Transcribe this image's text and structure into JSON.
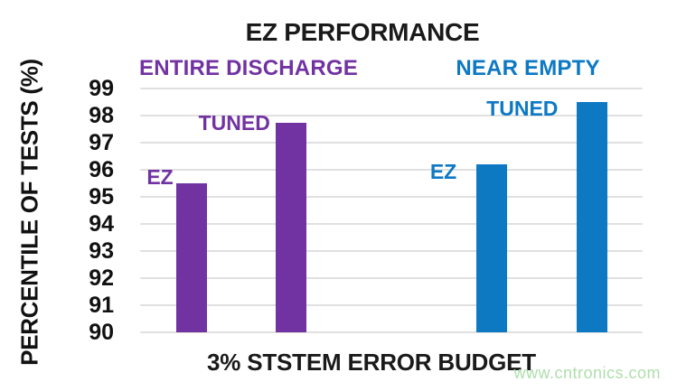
{
  "watermark": "www.cntronics.com",
  "chart_data": {
    "type": "bar",
    "title": "EZ PERFORMANCE",
    "ylabel": "PERCENTILE OF TESTS (%)",
    "xlabel": "3% STSTEM ERROR BUDGET",
    "ylim": [
      90,
      99
    ],
    "yticks": [
      99,
      98,
      97,
      96,
      95,
      94,
      93,
      92,
      91,
      90
    ],
    "grid": true,
    "legend_position": "none",
    "gridline_color": "#E0E0E0",
    "watermark_color": "#AEDFAB",
    "groups": [
      {
        "label": "ENTIRE DISCHARGE",
        "color": "#7233A2"
      },
      {
        "label": "NEAR EMPTY",
        "color": "#0D79C3"
      }
    ],
    "bars": [
      {
        "group": "ENTIRE DISCHARGE",
        "label": "EZ",
        "value": 95.5,
        "color": "#7233A2"
      },
      {
        "group": "ENTIRE DISCHARGE",
        "label": "TUNED",
        "value": 97.75,
        "color": "#7233A2"
      },
      {
        "group": "NEAR EMPTY",
        "label": "EZ",
        "value": 96.2,
        "color": "#0D79C3"
      },
      {
        "group": "NEAR EMPTY",
        "label": "TUNED",
        "value": 98.5,
        "color": "#0D79C3"
      }
    ]
  }
}
